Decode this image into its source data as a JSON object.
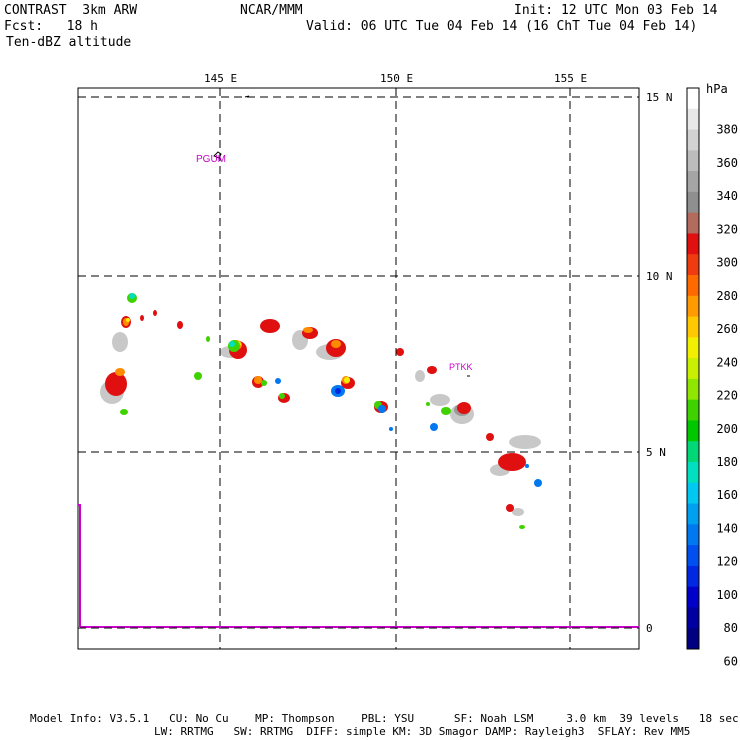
{
  "header": {
    "model": "CONTRAST  3km ARW",
    "org": "NCAR/MMM",
    "init": "Init: 12 UTC Mon 03 Feb 14",
    "fcst": "Fcst:   18 h",
    "valid": "Valid: 06 UTC Tue 04 Feb 14 (16 ChT Tue 04 Feb 14)",
    "field": "Ten-dBZ altitude"
  },
  "map": {
    "lon_labels": [
      "145 E",
      "150 E",
      "155 E"
    ],
    "lat_labels": [
      "15 N",
      "10 N",
      "5 N",
      "0"
    ],
    "stations": [
      "PGUM",
      "PTKK"
    ],
    "line_color": "#cc00cc"
  },
  "colorbar": {
    "unit": "hPa",
    "labels": [
      "380",
      "360",
      "340",
      "320",
      "300",
      "280",
      "260",
      "240",
      "220",
      "200",
      "180",
      "160",
      "140",
      "120",
      "100",
      "80",
      "60"
    ],
    "colors": [
      "#ffffff",
      "#e8e8e8",
      "#d2d2d2",
      "#bcbcbc",
      "#a5a5a5",
      "#8f8f8f",
      "#b36b5e",
      "#e01010",
      "#ee3c10",
      "#ff6a00",
      "#ff9a00",
      "#ffc800",
      "#f0f000",
      "#c8f000",
      "#90e600",
      "#40d200",
      "#00c800",
      "#00d878",
      "#00e0c0",
      "#00c8f0",
      "#00a0f0",
      "#0078f0",
      "#0050f0",
      "#0028e0",
      "#0000c8",
      "#0000a0",
      "#000080"
    ]
  },
  "footer": {
    "line1": "Model Info: V3.5.1   CU: No Cu    MP: Thompson    PBL: YSU      SF: Noah LSM     3.0 km  39 levels   18 sec",
    "line2": "LW: RRTMG   SW: RRTMG  DIFF: simple KM: 3D Smagor DAMP: Rayleigh3  SFLAY: Rev MM5"
  }
}
